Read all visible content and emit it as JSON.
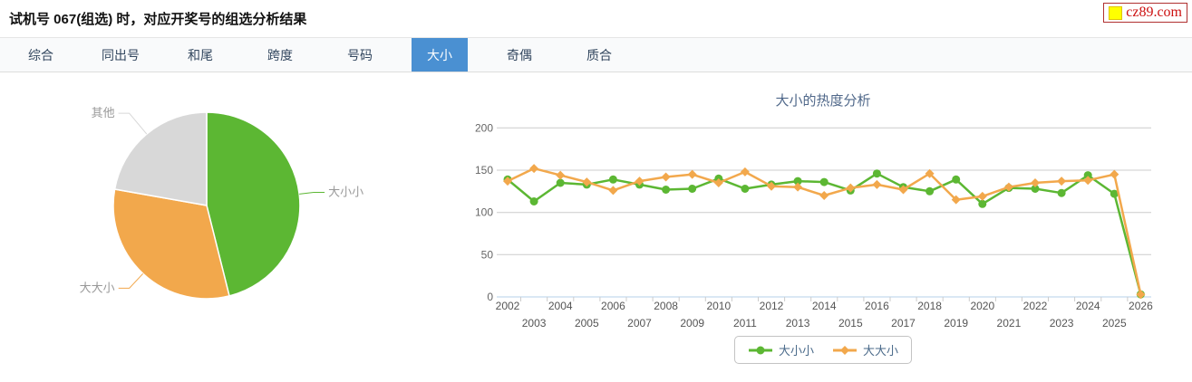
{
  "header": {
    "title": "试机号 067(组选) 时，对应开奖号的组选分析结果",
    "logo": {
      "text": "cz89.com",
      "square_color": "#ffff00",
      "text_color": "#cc1111"
    }
  },
  "tabs": {
    "items": [
      {
        "label": "综合",
        "active": false
      },
      {
        "label": "同出号",
        "active": false
      },
      {
        "label": "和尾",
        "active": false
      },
      {
        "label": "跨度",
        "active": false
      },
      {
        "label": "号码",
        "active": false
      },
      {
        "label": "大小",
        "active": true
      },
      {
        "label": "奇偶",
        "active": false
      },
      {
        "label": "质合",
        "active": false
      }
    ],
    "active_bg": "#4a90d2",
    "active_text": "#ffffff",
    "text_color": "#33475f"
  },
  "chart_data": [
    {
      "type": "pie",
      "title": "",
      "labels": [
        "大小小",
        "大大小",
        "其他"
      ],
      "values": [
        46.1,
        31.7,
        22.2
      ],
      "colors": [
        "#5cb733",
        "#f2a84c",
        "#d8d8d8"
      ],
      "label_color": "#999999",
      "start_angle_deg": 0,
      "legend_position": "none"
    },
    {
      "type": "line",
      "title": "大小的热度分析",
      "x": [
        2002,
        2003,
        2004,
        2005,
        2006,
        2007,
        2008,
        2009,
        2010,
        2011,
        2012,
        2013,
        2014,
        2015,
        2016,
        2017,
        2018,
        2019,
        2020,
        2021,
        2022,
        2023,
        2024,
        2025,
        2026
      ],
      "series": [
        {
          "name": "大小小",
          "color": "#5cb733",
          "marker": "circle",
          "values": [
            139,
            113,
            135,
            133,
            139,
            133,
            127,
            128,
            140,
            128,
            133,
            137,
            136,
            126,
            146,
            130,
            125,
            139,
            110,
            129,
            128,
            123,
            144,
            122,
            3
          ]
        },
        {
          "name": "大大小",
          "color": "#f2a84c",
          "marker": "diamond",
          "values": [
            137,
            152,
            144,
            136,
            126,
            137,
            142,
            145,
            135,
            148,
            131,
            130,
            120,
            129,
            133,
            127,
            146,
            115,
            119,
            130,
            135,
            137,
            138,
            145,
            3
          ]
        }
      ],
      "xlabel": "",
      "ylabel": "",
      "ylim": [
        0,
        200
      ],
      "yticks": [
        0,
        50,
        100,
        150,
        200
      ],
      "grid": true,
      "gridline_color": "#cccccc",
      "axis_line_color": "#b6d0ea",
      "tick_label_color": "#666666",
      "title_color": "#50688a",
      "legend_position": "bottom"
    }
  ]
}
